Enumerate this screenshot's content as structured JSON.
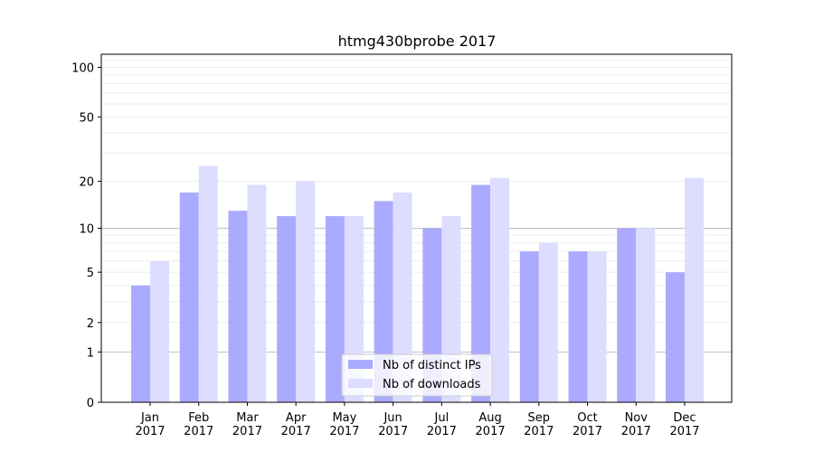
{
  "chart_data": {
    "type": "bar",
    "title": "htmg430bprobe 2017",
    "xlabel": "",
    "ylabel": "",
    "y_scale": "log1p",
    "ylim": [
      0,
      120
    ],
    "y_ticks": [
      0,
      1,
      2,
      5,
      10,
      20,
      50,
      100
    ],
    "major_grid_at": [
      1,
      10
    ],
    "categories": [
      [
        "Jan",
        "2017"
      ],
      [
        "Feb",
        "2017"
      ],
      [
        "Mar",
        "2017"
      ],
      [
        "Apr",
        "2017"
      ],
      [
        "May",
        "2017"
      ],
      [
        "Jun",
        "2017"
      ],
      [
        "Jul",
        "2017"
      ],
      [
        "Aug",
        "2017"
      ],
      [
        "Sep",
        "2017"
      ],
      [
        "Oct",
        "2017"
      ],
      [
        "Nov",
        "2017"
      ],
      [
        "Dec",
        "2017"
      ]
    ],
    "series": [
      {
        "name": "Nb of distinct IPs",
        "color": "#aaaaff",
        "values": [
          4,
          17,
          13,
          12,
          12,
          15,
          10,
          19,
          7,
          7,
          10,
          5
        ]
      },
      {
        "name": "Nb of downloads",
        "color": "#ddddff",
        "values": [
          6,
          25,
          19,
          20,
          12,
          17,
          12,
          21,
          8,
          7,
          10,
          21
        ]
      }
    ],
    "legend_position": "lower-center",
    "grid": true
  }
}
